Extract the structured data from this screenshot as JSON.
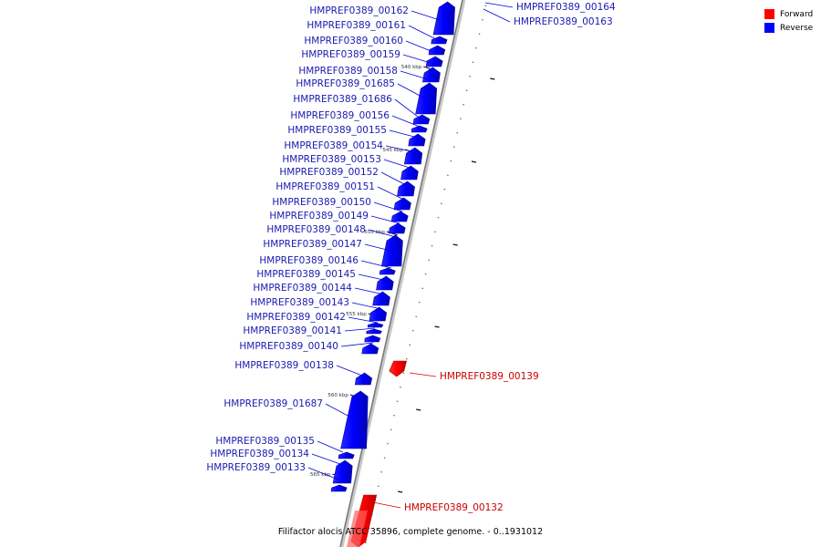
{
  "legend": {
    "forward": {
      "label": "Forward",
      "color": "#ff0000"
    },
    "reverse": {
      "label": "Reverse",
      "color": "#0000ff"
    }
  },
  "caption": "Filifactor alocis ATCC 35896, complete genome. - 0..1931012",
  "ticks": [
    "540 kbp",
    "545 kbp",
    "550 kbp",
    "555 kbp",
    "560 kbp",
    "565 kbp"
  ],
  "genes": [
    {
      "name": "HMPREF0389_00164",
      "strand": "reverse"
    },
    {
      "name": "HMPREF0389_00163",
      "strand": "reverse"
    },
    {
      "name": "HMPREF0389_00162",
      "strand": "reverse"
    },
    {
      "name": "HMPREF0389_00161",
      "strand": "reverse"
    },
    {
      "name": "HMPREF0389_00160",
      "strand": "reverse"
    },
    {
      "name": "HMPREF0389_00159",
      "strand": "reverse"
    },
    {
      "name": "HMPREF0389_00158",
      "strand": "reverse"
    },
    {
      "name": "HMPREF0389_01685",
      "strand": "reverse"
    },
    {
      "name": "HMPREF0389_01686",
      "strand": "reverse"
    },
    {
      "name": "HMPREF0389_00156",
      "strand": "reverse"
    },
    {
      "name": "HMPREF0389_00155",
      "strand": "reverse"
    },
    {
      "name": "HMPREF0389_00154",
      "strand": "reverse"
    },
    {
      "name": "HMPREF0389_00153",
      "strand": "reverse"
    },
    {
      "name": "HMPREF0389_00152",
      "strand": "reverse"
    },
    {
      "name": "HMPREF0389_00151",
      "strand": "reverse"
    },
    {
      "name": "HMPREF0389_00150",
      "strand": "reverse"
    },
    {
      "name": "HMPREF0389_00149",
      "strand": "reverse"
    },
    {
      "name": "HMPREF0389_00148",
      "strand": "reverse"
    },
    {
      "name": "HMPREF0389_00147",
      "strand": "reverse"
    },
    {
      "name": "HMPREF0389_00146",
      "strand": "reverse"
    },
    {
      "name": "HMPREF0389_00145",
      "strand": "reverse"
    },
    {
      "name": "HMPREF0389_00144",
      "strand": "reverse"
    },
    {
      "name": "HMPREF0389_00143",
      "strand": "reverse"
    },
    {
      "name": "HMPREF0389_00142",
      "strand": "reverse"
    },
    {
      "name": "HMPREF0389_00141",
      "strand": "reverse"
    },
    {
      "name": "HMPREF0389_00140",
      "strand": "reverse"
    },
    {
      "name": "HMPREF0389_00138",
      "strand": "reverse"
    },
    {
      "name": "HMPREF0389_00139",
      "strand": "forward"
    },
    {
      "name": "HMPREF0389_01687",
      "strand": "reverse"
    },
    {
      "name": "HMPREF0389_00135",
      "strand": "reverse"
    },
    {
      "name": "HMPREF0389_00134",
      "strand": "reverse"
    },
    {
      "name": "HMPREF0389_00133",
      "strand": "reverse"
    },
    {
      "name": "HMPREF0389_00132",
      "strand": "forward"
    }
  ]
}
